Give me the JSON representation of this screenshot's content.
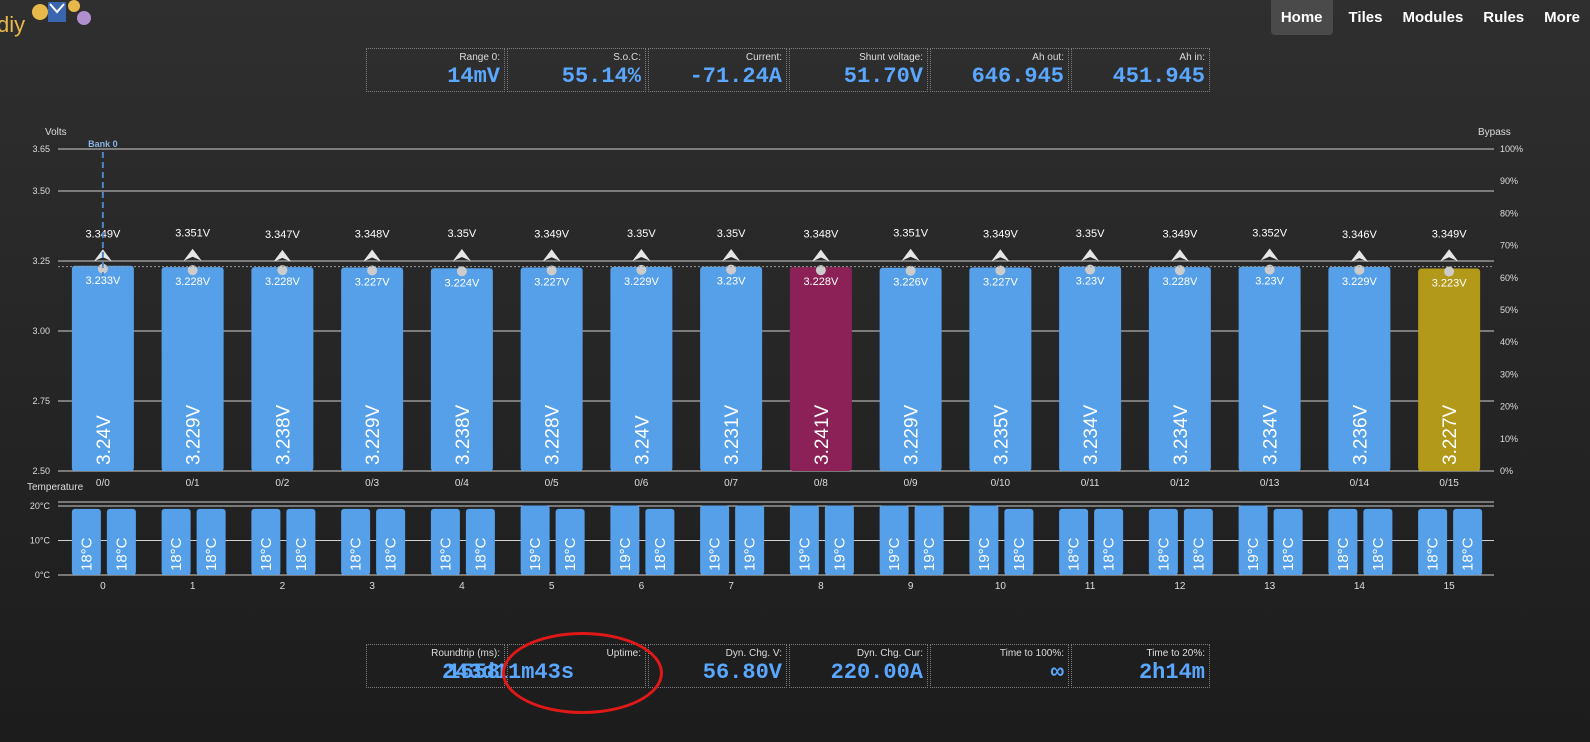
{
  "logo": {
    "text": "diy"
  },
  "nav": {
    "items": [
      {
        "label": "Home",
        "active": true
      },
      {
        "label": "Tiles",
        "active": false
      },
      {
        "label": "Modules",
        "active": false
      },
      {
        "label": "Rules",
        "active": false
      },
      {
        "label": "More",
        "active": false
      }
    ]
  },
  "tiles_top": [
    {
      "label": "Range 0:",
      "value": "14mV"
    },
    {
      "label": "S.o.C:",
      "value": "55.14%"
    },
    {
      "label": "Current:",
      "value": "-71.24A"
    },
    {
      "label": "Shunt voltage:",
      "value": "51.70V"
    },
    {
      "label": "Ah out:",
      "value": "646.945"
    },
    {
      "label": "Ah in:",
      "value": "451.945"
    }
  ],
  "tiles_bottom": [
    {
      "label": "Roundtrip (ms):",
      "value": "1558"
    },
    {
      "label": "Uptime:",
      "value": "243d11m43s"
    },
    {
      "label": "Dyn. Chg. V:",
      "value": "56.80V"
    },
    {
      "label": "Dyn. Chg. Cur:",
      "value": "220.00A"
    },
    {
      "label": "Time to 100%:",
      "value": "∞"
    },
    {
      "label": "Time to 20%:",
      "value": "2h14m"
    }
  ],
  "colors": {
    "bar": "#56a0ea",
    "highest": "#8b2157",
    "lowest": "#b3991a",
    "value_text": "#5aa7ff",
    "highlight": "#e01818"
  },
  "chart_data": [
    {
      "type": "bar",
      "ylabel": "Volts",
      "y2label": "Bypass",
      "ylim": [
        2.5,
        3.65
      ],
      "yticks": [
        "2.50",
        "2.75",
        "3.00",
        "3.25",
        "3.50",
        "3.65"
      ],
      "y2ticks": [
        "0%",
        "10%",
        "20%",
        "30%",
        "40%",
        "50%",
        "60%",
        "70%",
        "80%",
        "90%",
        "100%"
      ],
      "bank_label": "Bank 0",
      "categories": [
        "0/0",
        "0/1",
        "0/2",
        "0/3",
        "0/4",
        "0/5",
        "0/6",
        "0/7",
        "0/8",
        "0/9",
        "0/10",
        "0/11",
        "0/12",
        "0/13",
        "0/14",
        "0/15"
      ],
      "series": [
        {
          "name": "Voltage",
          "values": [
            3.24,
            3.229,
            3.238,
            3.229,
            3.238,
            3.228,
            3.24,
            3.231,
            3.241,
            3.229,
            3.235,
            3.234,
            3.234,
            3.234,
            3.236,
            3.227
          ]
        },
        {
          "name": "Min voltage",
          "values": [
            3.233,
            3.228,
            3.228,
            3.227,
            3.224,
            3.227,
            3.229,
            3.23,
            3.228,
            3.226,
            3.227,
            3.23,
            3.228,
            3.23,
            3.229,
            3.223
          ]
        },
        {
          "name": "Max voltage",
          "values": [
            3.349,
            3.351,
            3.347,
            3.348,
            3.35,
            3.349,
            3.35,
            3.35,
            3.348,
            3.351,
            3.349,
            3.35,
            3.349,
            3.352,
            3.346,
            3.349
          ]
        }
      ],
      "bar_labels": [
        "3.24V",
        "3.229V",
        "3.238V",
        "3.229V",
        "3.238V",
        "3.228V",
        "3.24V",
        "3.231V",
        "3.241V",
        "3.229V",
        "3.235V",
        "3.234V",
        "3.234V",
        "3.234V",
        "3.236V",
        "3.227V"
      ],
      "min_labels": [
        "3.233V",
        "3.228V",
        "3.228V",
        "3.227V",
        "3.224V",
        "3.227V",
        "3.229V",
        "3.23V",
        "3.228V",
        "3.226V",
        "3.227V",
        "3.23V",
        "3.228V",
        "3.23V",
        "3.229V",
        "3.223V"
      ],
      "max_labels": [
        "3.349V",
        "3.351V",
        "3.347V",
        "3.348V",
        "3.35V",
        "3.349V",
        "3.35V",
        "3.35V",
        "3.348V",
        "3.351V",
        "3.349V",
        "3.35V",
        "3.349V",
        "3.352V",
        "3.346V",
        "3.349V"
      ],
      "highest_index": 8,
      "lowest_index": 15
    },
    {
      "type": "bar",
      "ylabel": "Temperature",
      "ylim": [
        0,
        20
      ],
      "yticks": [
        "0°C",
        "10°C",
        "20°C"
      ],
      "categories": [
        "0",
        "1",
        "2",
        "3",
        "4",
        "5",
        "6",
        "7",
        "8",
        "9",
        "10",
        "11",
        "12",
        "13",
        "14",
        "15"
      ],
      "series": [
        {
          "name": "Internal",
          "values": [
            18,
            18,
            18,
            18,
            18,
            19,
            19,
            19,
            19,
            19,
            19,
            18,
            18,
            19,
            18,
            18
          ]
        },
        {
          "name": "External",
          "values": [
            18,
            18,
            18,
            18,
            18,
            18,
            18,
            19,
            19,
            19,
            18,
            18,
            18,
            18,
            18,
            18
          ]
        }
      ],
      "internal_labels": [
        "18°C",
        "18°C",
        "18°C",
        "18°C",
        "18°C",
        "19°C",
        "19°C",
        "19°C",
        "19°C",
        "19°C",
        "19°C",
        "18°C",
        "18°C",
        "19°C",
        "18°C",
        "18°C"
      ],
      "external_labels": [
        "18°C",
        "18°C",
        "18°C",
        "18°C",
        "18°C",
        "18°C",
        "18°C",
        "19°C",
        "19°C",
        "19°C",
        "18°C",
        "18°C",
        "18°C",
        "18°C",
        "18°C",
        "18°C"
      ]
    }
  ]
}
